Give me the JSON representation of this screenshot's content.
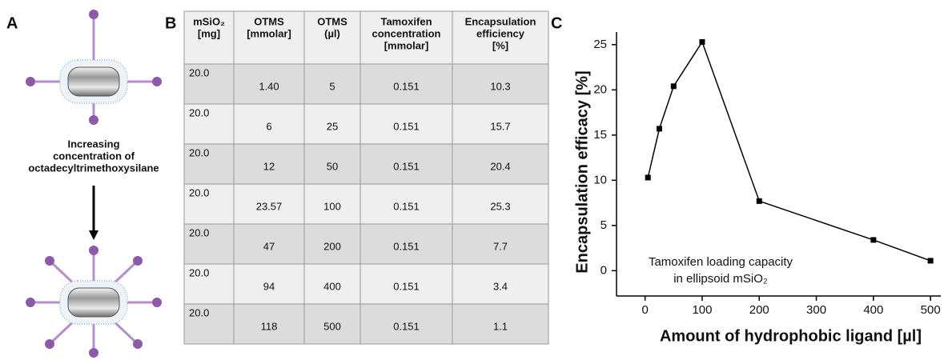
{
  "panel_a": {
    "label": "A",
    "caption": [
      "Increasing",
      "concentration of",
      "octadecyltrimethoxysilane"
    ]
  },
  "table": {
    "label": "B",
    "header": [
      [
        "mSiO₂",
        "[mg]"
      ],
      [
        "OTMS",
        "[mmolar]"
      ],
      [
        "OTMS",
        "(µl)"
      ],
      [
        "Tamoxifen",
        "concentration",
        "[mmolar]"
      ],
      [
        "Encapsulation",
        "efficiency",
        "[%]"
      ]
    ],
    "rows": [
      [
        "20.0",
        "1.40",
        "5",
        "0.151",
        "10.3"
      ],
      [
        "20.0",
        "6",
        "25",
        "0.151",
        "15.7"
      ],
      [
        "20.0",
        "12",
        "50",
        "0.151",
        "20.4"
      ],
      [
        "20.0",
        "23.57",
        "100",
        "0.151",
        "25.3"
      ],
      [
        "20.0",
        "47",
        "200",
        "0.151",
        "7.7"
      ],
      [
        "20.0",
        "94",
        "400",
        "0.151",
        "3.4"
      ],
      [
        "20.0",
        "118",
        "500",
        "0.151",
        "1.1"
      ]
    ]
  },
  "chart_data": {
    "type": "line",
    "label": "C",
    "x": [
      5,
      25,
      50,
      100,
      200,
      400,
      500
    ],
    "values": [
      10.3,
      15.7,
      20.4,
      25.3,
      7.7,
      3.4,
      1.1
    ],
    "color": "#000000",
    "xlim": [
      -50,
      518
    ],
    "ylim": [
      -2.8,
      26.4
    ],
    "xticks": [
      0,
      100,
      200,
      300,
      400,
      500
    ],
    "yticks": [
      0,
      5,
      10,
      15,
      20,
      25
    ],
    "xlabel": "Amount of hydrophobic ligand [µl]",
    "ylabel": "Encapsulation efficacy [%]",
    "annotation": [
      "Tamoxifen loading capacity",
      "in ellipsoid mSiO₂"
    ]
  }
}
